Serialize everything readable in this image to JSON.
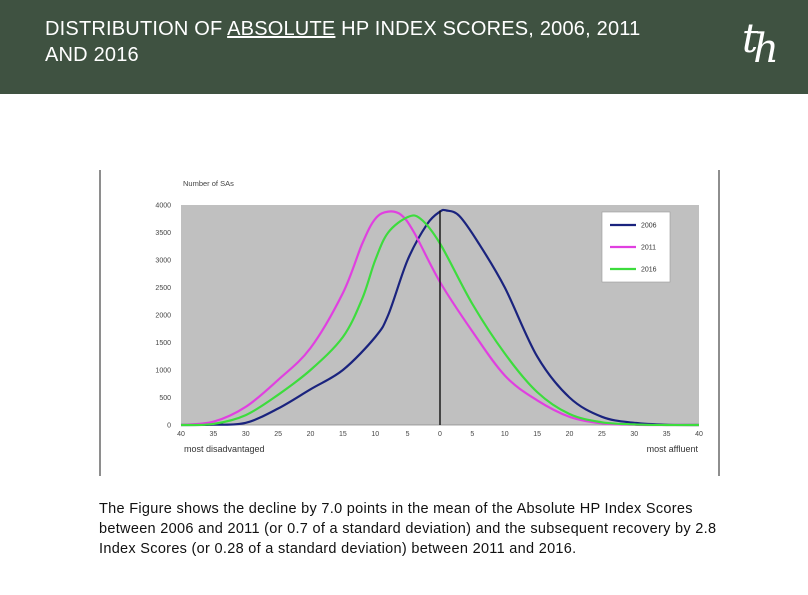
{
  "header": {
    "title_before": "DISTRIBUTION OF ",
    "title_emph": "ABSOLUTE",
    "title_after": " HP INDEX SCORES, 2006, 2011 AND 2016",
    "logo_t": "t",
    "logo_h": "h"
  },
  "caption": "The Figure shows the decline by 7.0 points in the mean of the Absolute HP Index Scores between 2006 and 2011 (or 0.7 of a standard deviation) and the subsequent recovery by 2.8 Index Scores (or 0.28 of a standard deviation) between 2011 and 2016.",
  "chart_data": {
    "type": "line",
    "title": "",
    "ylabel": "Number of SAs",
    "xlabel": "",
    "x_left_label": "most disadvantaged",
    "x_right_label": "most affluent",
    "ylim": [
      0,
      4000
    ],
    "xlim": [
      -40,
      40
    ],
    "yticks": [
      0,
      500,
      1000,
      1500,
      2000,
      2500,
      3000,
      3500,
      4000
    ],
    "xticks": [
      -40,
      -35,
      -30,
      -25,
      -20,
      -15,
      -10,
      -5,
      0,
      5,
      10,
      15,
      20,
      25,
      30,
      35,
      40
    ],
    "xtick_labels": [
      "40",
      "35",
      "30",
      "25",
      "20",
      "15",
      "10",
      "5",
      "0",
      "5",
      "10",
      "15",
      "20",
      "25",
      "30",
      "35",
      "40"
    ],
    "grid": false,
    "reference_line_x": 0,
    "legend_position": "top-right",
    "series": [
      {
        "name": "2006",
        "color": "#1a237e",
        "points": [
          [
            -40,
            0
          ],
          [
            -35,
            5
          ],
          [
            -30,
            40
          ],
          [
            -25,
            300
          ],
          [
            -20,
            650
          ],
          [
            -15,
            1000
          ],
          [
            -10,
            1600
          ],
          [
            -8,
            2000
          ],
          [
            -5,
            3000
          ],
          [
            -2,
            3650
          ],
          [
            0,
            3880
          ],
          [
            1,
            3900
          ],
          [
            3,
            3800
          ],
          [
            6,
            3300
          ],
          [
            10,
            2500
          ],
          [
            15,
            1250
          ],
          [
            20,
            500
          ],
          [
            25,
            150
          ],
          [
            30,
            40
          ],
          [
            35,
            5
          ],
          [
            40,
            0
          ]
        ]
      },
      {
        "name": "2011",
        "color": "#e040e0",
        "points": [
          [
            -40,
            0
          ],
          [
            -35,
            60
          ],
          [
            -30,
            330
          ],
          [
            -25,
            820
          ],
          [
            -20,
            1400
          ],
          [
            -15,
            2400
          ],
          [
            -12,
            3300
          ],
          [
            -10,
            3750
          ],
          [
            -8,
            3880
          ],
          [
            -6,
            3820
          ],
          [
            -4,
            3500
          ],
          [
            0,
            2600
          ],
          [
            5,
            1700
          ],
          [
            10,
            900
          ],
          [
            15,
            450
          ],
          [
            20,
            150
          ],
          [
            25,
            30
          ],
          [
            30,
            5
          ],
          [
            35,
            0
          ],
          [
            40,
            0
          ]
        ]
      },
      {
        "name": "2016",
        "color": "#3ddc3d",
        "points": [
          [
            -40,
            0
          ],
          [
            -35,
            20
          ],
          [
            -30,
            180
          ],
          [
            -25,
            550
          ],
          [
            -20,
            1000
          ],
          [
            -15,
            1600
          ],
          [
            -12,
            2300
          ],
          [
            -10,
            3000
          ],
          [
            -8,
            3500
          ],
          [
            -5,
            3780
          ],
          [
            -3,
            3750
          ],
          [
            0,
            3300
          ],
          [
            5,
            2200
          ],
          [
            10,
            1300
          ],
          [
            15,
            600
          ],
          [
            20,
            200
          ],
          [
            25,
            50
          ],
          [
            30,
            10
          ],
          [
            35,
            0
          ],
          [
            40,
            0
          ]
        ]
      }
    ]
  }
}
